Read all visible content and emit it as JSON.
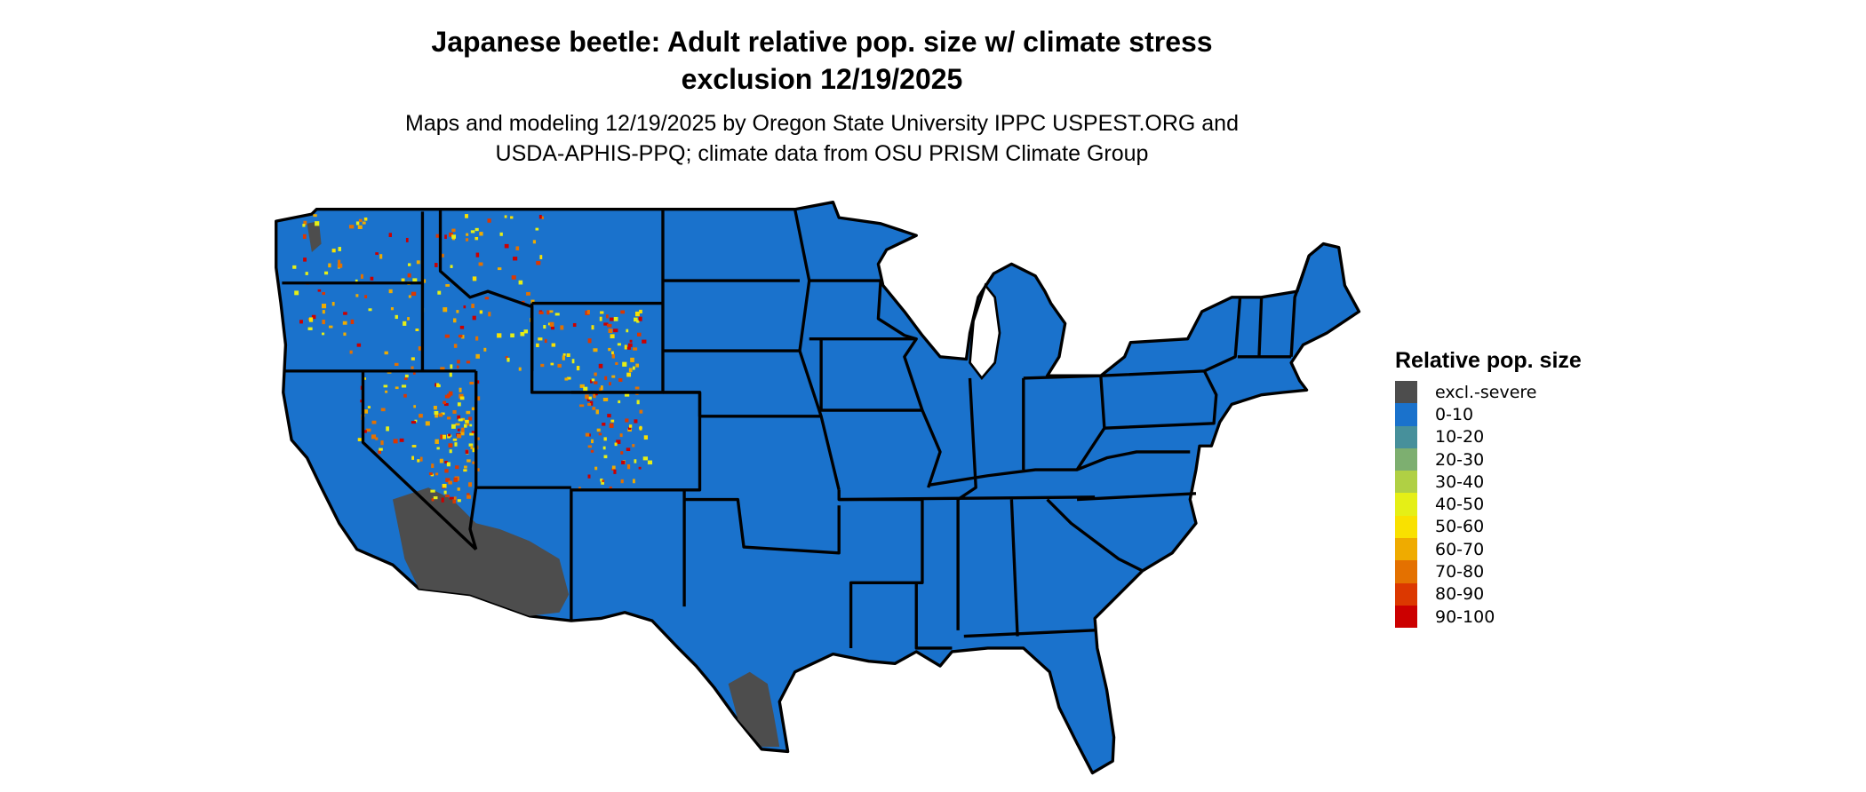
{
  "title": {
    "line1": "Japanese beetle: Adult relative pop. size w/ climate stress",
    "line2": "exclusion 12/19/2025"
  },
  "subtitle": {
    "line1": "Maps and modeling 12/19/2025 by Oregon State University IPPC USPEST.ORG and",
    "line2": "USDA-APHIS-PPQ; climate data from OSU PRISM Climate Group"
  },
  "legend": {
    "title": "Relative pop. size",
    "items": [
      {
        "label": "excl.-severe",
        "color": "#4d4d4d"
      },
      {
        "label": "0-10",
        "color": "#1a72cc"
      },
      {
        "label": "10-20",
        "color": "#47909b"
      },
      {
        "label": "20-30",
        "color": "#7daf70"
      },
      {
        "label": "30-40",
        "color": "#b0d044"
      },
      {
        "label": "40-50",
        "color": "#e5ef16"
      },
      {
        "label": "50-60",
        "color": "#f9e100"
      },
      {
        "label": "60-70",
        "color": "#efab00"
      },
      {
        "label": "70-80",
        "color": "#e47100"
      },
      {
        "label": "80-90",
        "color": "#dc3800"
      },
      {
        "label": "90-100",
        "color": "#cc0000"
      }
    ]
  },
  "map": {
    "region": "Contiguous United States",
    "dominant_class": "0-10",
    "excluded_areas": [
      "southern Arizona",
      "southeastern California",
      "southern Texas"
    ],
    "higher_value_areas": [
      "Washington",
      "Idaho",
      "Montana",
      "Wyoming",
      "Utah",
      "Colorado",
      "Oregon"
    ]
  }
}
